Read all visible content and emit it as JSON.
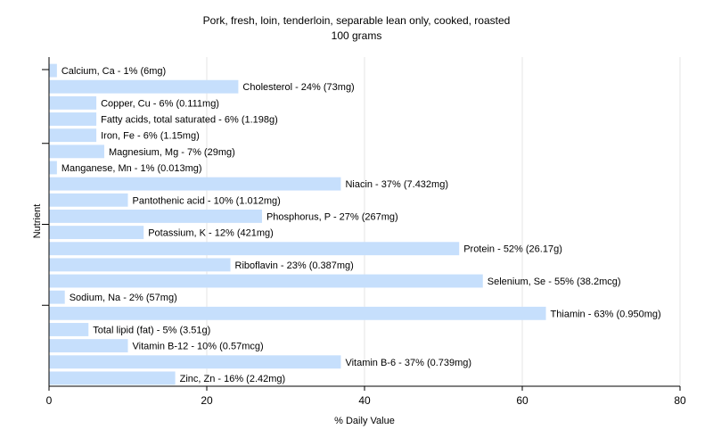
{
  "chart_data": {
    "type": "bar",
    "orientation": "horizontal",
    "title": "Pork, fresh, loin, tenderloin, separable lean only, cooked, roasted",
    "subtitle": "100 grams",
    "xlabel": "% Daily Value",
    "ylabel": "Nutrient",
    "xlim": [
      0,
      80
    ],
    "xticks": [
      0,
      20,
      40,
      60,
      80
    ],
    "grid": true,
    "bar_color": "#c6dffc",
    "categories": [
      "Calcium, Ca",
      "Cholesterol",
      "Copper, Cu",
      "Fatty acids, total saturated",
      "Iron, Fe",
      "Magnesium, Mg",
      "Manganese, Mn",
      "Niacin",
      "Pantothenic acid",
      "Phosphorus, P",
      "Potassium, K",
      "Protein",
      "Riboflavin",
      "Selenium, Se",
      "Sodium, Na",
      "Thiamin",
      "Total lipid (fat)",
      "Vitamin B-12",
      "Vitamin B-6",
      "Zinc, Zn"
    ],
    "values": [
      1,
      24,
      6,
      6,
      6,
      7,
      1,
      37,
      10,
      27,
      12,
      52,
      23,
      55,
      2,
      63,
      5,
      10,
      37,
      16
    ],
    "labels": [
      "Calcium, Ca - 1% (6mg)",
      "Cholesterol - 24% (73mg)",
      "Copper, Cu - 6% (0.111mg)",
      "Fatty acids, total saturated - 6% (1.198g)",
      "Iron, Fe - 6% (1.15mg)",
      "Magnesium, Mg - 7% (29mg)",
      "Manganese, Mn - 1% (0.013mg)",
      "Niacin - 37% (7.432mg)",
      "Pantothenic acid - 10% (1.012mg)",
      "Phosphorus, P - 27% (267mg)",
      "Potassium, K - 12% (421mg)",
      "Protein - 52% (26.17g)",
      "Riboflavin - 23% (0.387mg)",
      "Selenium, Se - 55% (38.2mcg)",
      "Sodium, Na - 2% (57mg)",
      "Thiamin - 63% (0.950mg)",
      "Total lipid (fat) - 5% (3.51g)",
      "Vitamin B-12 - 10% (0.57mcg)",
      "Vitamin B-6 - 37% (0.739mg)",
      "Zinc, Zn - 16% (2.42mg)"
    ]
  }
}
